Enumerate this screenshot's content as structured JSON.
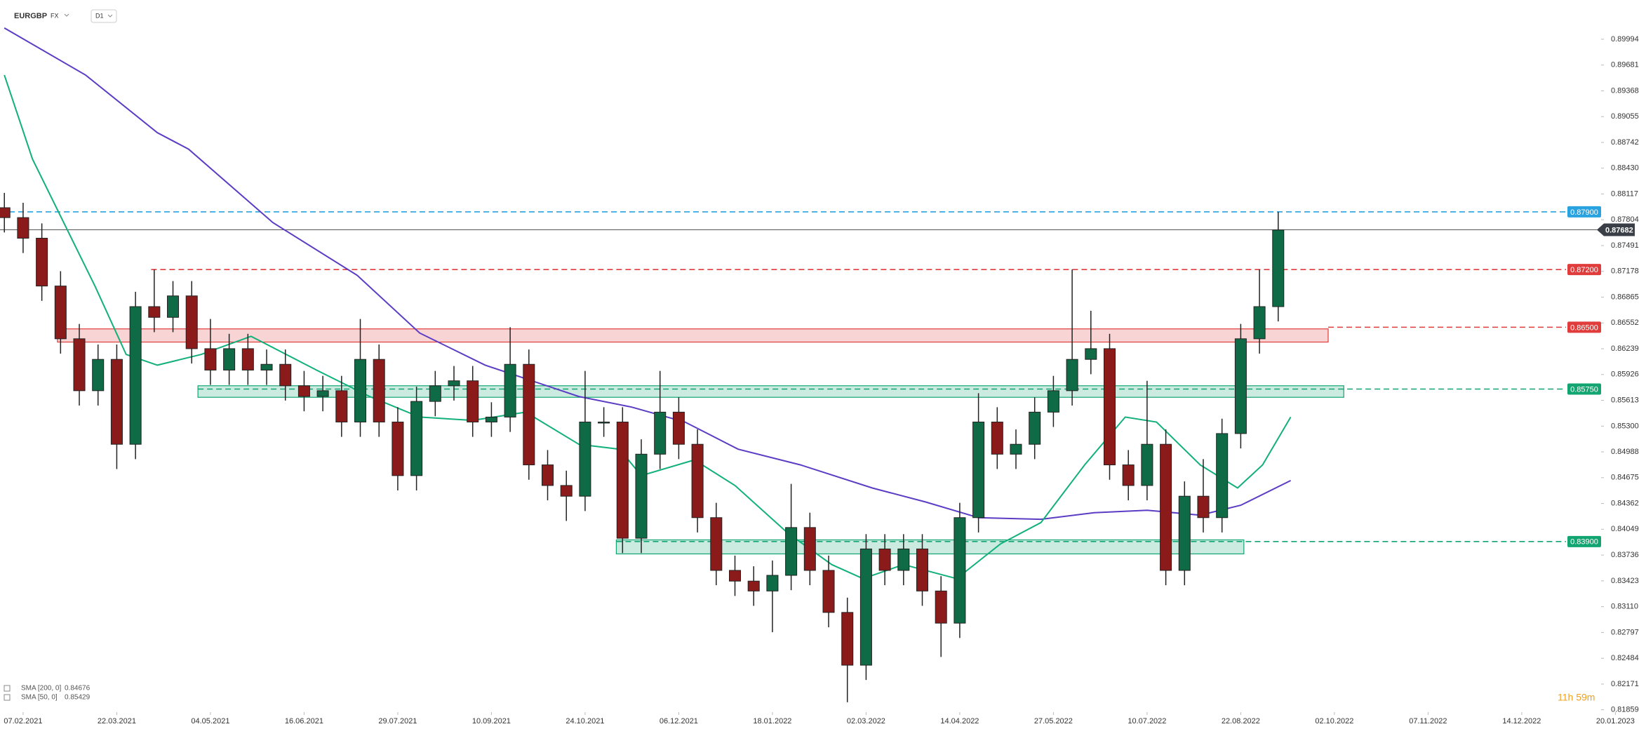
{
  "chart_data": {
    "type": "candlestick",
    "symbol": "EURGBP",
    "market": "FX",
    "interval": "D1",
    "timer": "11h 59m",
    "xlim": [
      -7.4,
      519.8
    ],
    "ylim": [
      0.8183,
      0.9047
    ],
    "xticks": [
      {
        "value": 0,
        "label": "07.02.2021"
      },
      {
        "value": 30,
        "label": "22.03.2021"
      },
      {
        "value": 60,
        "label": "04.05.2021"
      },
      {
        "value": 90,
        "label": "16.06.2021"
      },
      {
        "value": 120,
        "label": "29.07.2021"
      },
      {
        "value": 150,
        "label": "10.09.2021"
      },
      {
        "value": 180,
        "label": "24.10.2021"
      },
      {
        "value": 210,
        "label": "06.12.2021"
      },
      {
        "value": 240,
        "label": "18.01.2022"
      },
      {
        "value": 270,
        "label": "02.03.2022"
      },
      {
        "value": 300,
        "label": "14.04.2022"
      },
      {
        "value": 330,
        "label": "27.05.2022"
      },
      {
        "value": 360,
        "label": "10.07.2022"
      },
      {
        "value": 390,
        "label": "22.08.2022"
      },
      {
        "value": 420,
        "label": "02.10.2022"
      },
      {
        "value": 450,
        "label": "07.11.2022"
      },
      {
        "value": 480,
        "label": "14.12.2022"
      },
      {
        "value": 510,
        "label": "20.01.2023"
      }
    ],
    "yticks": [
      0.89994,
      0.89681,
      0.89368,
      0.89055,
      0.88742,
      {
        "value": 0.8843,
        "label": "0.88430"
      },
      0.88117,
      0.87804,
      0.87491,
      0.87178,
      0.86865,
      0.86552,
      0.86239,
      0.85926,
      0.85613,
      {
        "value": 0.853,
        "label": "0.85300"
      },
      0.84988,
      0.84675,
      0.84362,
      0.84049,
      0.83736,
      0.83423,
      {
        "value": 0.8311,
        "label": "0.83110"
      },
      0.82797,
      0.82484,
      0.82171,
      0.81859
    ],
    "up_color": "#0f6b45",
    "down_color": "#8b1a1a",
    "x": [
      -6,
      0,
      6,
      12,
      18,
      24,
      30,
      36,
      42,
      48,
      54,
      60,
      66,
      72,
      78,
      84,
      90,
      96,
      102,
      108,
      114,
      120,
      126,
      132,
      138,
      144,
      150,
      156,
      162,
      168,
      174,
      180,
      186,
      192,
      198,
      204,
      210,
      216,
      222,
      228,
      234,
      240,
      246,
      252,
      258,
      264,
      270,
      276,
      282,
      288,
      294,
      300,
      306,
      312,
      318,
      324,
      330,
      336,
      342,
      348,
      354,
      360,
      366,
      372,
      378,
      384,
      390,
      396,
      402
    ],
    "open": [
      0.8795,
      0.8783,
      0.8758,
      0.87,
      0.8636,
      0.8573,
      0.8611,
      0.8508,
      0.8675,
      0.8662,
      0.8688,
      0.8624,
      0.8598,
      0.8624,
      0.8598,
      0.8605,
      0.8579,
      0.8566,
      0.8573,
      0.8535,
      0.8611,
      0.8535,
      0.847,
      0.856,
      0.8579,
      0.8585,
      0.8535,
      0.8541,
      0.8605,
      0.8483,
      0.8458,
      0.8445,
      0.8535,
      0.8535,
      0.8394,
      0.8496,
      0.8547,
      0.8508,
      0.8419,
      0.8355,
      0.8342,
      0.833,
      0.8349,
      0.8407,
      0.8355,
      0.8304,
      0.824,
      0.8381,
      0.8355,
      0.8381,
      0.833,
      0.8291,
      0.8419,
      0.8535,
      0.8496,
      0.8508,
      0.8547,
      0.8573,
      0.8611,
      0.8624,
      0.8483,
      0.8458,
      0.8508,
      0.8355,
      0.8445,
      0.8419,
      0.8521,
      0.8636,
      0.8675
    ],
    "high": [
      0.8813,
      0.8801,
      0.8776,
      0.8718,
      0.8654,
      0.8629,
      0.8629,
      0.8693,
      0.872,
      0.8706,
      0.8706,
      0.866,
      0.8642,
      0.8642,
      0.8623,
      0.8623,
      0.8597,
      0.8591,
      0.8591,
      0.866,
      0.8629,
      0.8553,
      0.8578,
      0.8597,
      0.8603,
      0.8603,
      0.8559,
      0.865,
      0.8623,
      0.8501,
      0.8476,
      0.8597,
      0.8553,
      0.8553,
      0.8514,
      0.8597,
      0.8565,
      0.8526,
      0.8437,
      0.8373,
      0.836,
      0.8367,
      0.846,
      0.8425,
      0.8373,
      0.8322,
      0.8399,
      0.8399,
      0.8399,
      0.8399,
      0.8348,
      0.8437,
      0.857,
      0.8553,
      0.8526,
      0.8565,
      0.8591,
      0.872,
      0.867,
      0.8642,
      0.8501,
      0.8585,
      0.8526,
      0.8463,
      0.849,
      0.8539,
      0.8654,
      0.872,
      0.879
    ],
    "low": [
      0.8765,
      0.874,
      0.8682,
      0.8618,
      0.8555,
      0.8555,
      0.8478,
      0.849,
      0.8644,
      0.8644,
      0.8606,
      0.858,
      0.858,
      0.858,
      0.858,
      0.8561,
      0.8548,
      0.8548,
      0.8517,
      0.8517,
      0.8517,
      0.8452,
      0.8452,
      0.8542,
      0.8561,
      0.8517,
      0.8517,
      0.8523,
      0.8465,
      0.844,
      0.8415,
      0.8427,
      0.8517,
      0.8376,
      0.8376,
      0.8478,
      0.849,
      0.8401,
      0.8337,
      0.8324,
      0.8312,
      0.828,
      0.8331,
      0.8337,
      0.8286,
      0.8195,
      0.8222,
      0.8337,
      0.8337,
      0.8312,
      0.825,
      0.8273,
      0.8401,
      0.8478,
      0.8478,
      0.849,
      0.8529,
      0.8555,
      0.8593,
      0.8465,
      0.844,
      0.844,
      0.8337,
      0.8337,
      0.8401,
      0.8401,
      0.8503,
      0.8618,
      0.8657
    ],
    "close": [
      0.8783,
      0.8758,
      0.87,
      0.8636,
      0.8573,
      0.8611,
      0.8508,
      0.8675,
      0.8662,
      0.8688,
      0.8624,
      0.8598,
      0.8624,
      0.8598,
      0.8605,
      0.8579,
      0.8566,
      0.8573,
      0.8535,
      0.8611,
      0.8535,
      0.847,
      0.856,
      0.8579,
      0.8585,
      0.8535,
      0.8541,
      0.8605,
      0.8483,
      0.8458,
      0.8445,
      0.8535,
      0.8535,
      0.8394,
      0.8496,
      0.8547,
      0.8508,
      0.8419,
      0.8355,
      0.8342,
      0.833,
      0.8349,
      0.8407,
      0.8355,
      0.8304,
      0.824,
      0.8381,
      0.8355,
      0.8381,
      0.833,
      0.8291,
      0.8419,
      0.8535,
      0.8496,
      0.8508,
      0.8547,
      0.8573,
      0.8611,
      0.8624,
      0.8483,
      0.8458,
      0.8508,
      0.8355,
      0.8445,
      0.8419,
      0.8521,
      0.8636,
      0.8675,
      0.8768
    ],
    "indicators": [
      {
        "name": "SMA [200, 0]",
        "last": 0.84676,
        "color": "#5b3cc4",
        "x": [
          -6,
          20,
          43,
          53,
          80,
          107,
          127,
          148,
          178,
          195,
          212,
          229,
          249,
          272,
          289,
          306,
          326,
          343,
          360,
          377,
          390,
          406
        ],
        "values": [
          0.9013,
          0.8956,
          0.8886,
          0.8866,
          0.8777,
          0.8713,
          0.8643,
          0.8604,
          0.8566,
          0.8553,
          0.8535,
          0.8502,
          0.8483,
          0.8455,
          0.8438,
          0.8419,
          0.8417,
          0.8425,
          0.8428,
          0.8422,
          0.8434,
          0.8464
        ]
      },
      {
        "name": "SMA [50, 0]",
        "last": 0.85429,
        "color": "#12b07a",
        "x": [
          -6,
          3,
          13,
          23,
          33,
          43,
          57,
          73,
          94,
          111,
          127,
          144,
          161,
          178,
          191,
          198,
          215,
          228,
          245,
          259,
          269,
          282,
          299,
          313,
          326,
          340,
          353,
          363,
          377,
          389,
          397,
          406
        ],
        "values": [
          0.8956,
          0.8854,
          0.8777,
          0.87,
          0.8617,
          0.8604,
          0.8617,
          0.8639,
          0.8598,
          0.8566,
          0.8541,
          0.8537,
          0.8547,
          0.8508,
          0.8502,
          0.847,
          0.8489,
          0.8458,
          0.84,
          0.8362,
          0.8345,
          0.8362,
          0.8345,
          0.8387,
          0.8413,
          0.8483,
          0.8541,
          0.8535,
          0.8483,
          0.8455,
          0.8483,
          0.8541
        ]
      }
    ],
    "current_price": 0.87682,
    "levels": [
      {
        "value": 0.879,
        "value_label": "0.87900",
        "color": "#29a3e0",
        "start": -7.4
      },
      {
        "value": 0.872,
        "value_label": "0.87200",
        "color": "#e03c3c",
        "start": 41
      },
      {
        "value": 0.865,
        "value_label": "0.86500",
        "color": "#e03c3c",
        "start": 418
      },
      {
        "value": 0.8575,
        "value_label": "0.85750",
        "color": "#12a572",
        "start": 56
      },
      {
        "value": 0.839,
        "value_label": "0.83900",
        "color": "#12a572",
        "start": 190
      }
    ],
    "zones": [
      {
        "low": 0.8632,
        "high": 0.8648,
        "start": 11,
        "end": 418,
        "color": "#e03c3c"
      },
      {
        "low": 0.8565,
        "high": 0.8579,
        "start": 56,
        "end": 423,
        "color": "#12a572"
      },
      {
        "low": 0.8375,
        "high": 0.8392,
        "start": 190,
        "end": 391,
        "color": "#12a572"
      }
    ]
  }
}
